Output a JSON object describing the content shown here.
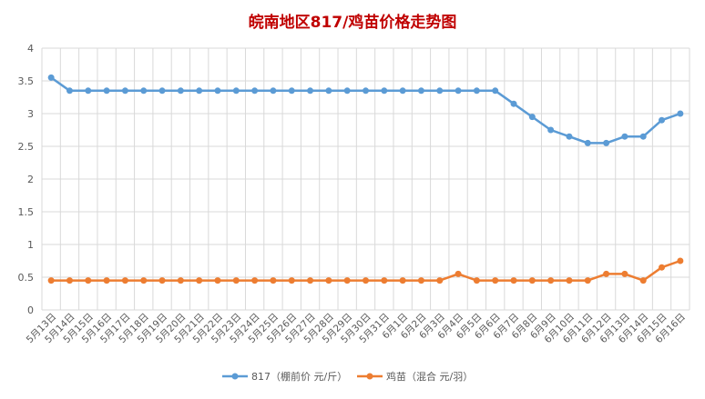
{
  "chart_data": {
    "type": "line",
    "title": "皖南地区817/鸡苗价格走势图",
    "xlabel": "",
    "ylabel": "",
    "ylim": [
      0,
      4
    ],
    "yticks": [
      "0",
      "0.5",
      "1",
      "1.5",
      "2",
      "2.5",
      "3",
      "3.5",
      "4"
    ],
    "grid": true,
    "legend_position": "bottom",
    "categories": [
      "5月13日",
      "5月14日",
      "5月15日",
      "5月16日",
      "5月17日",
      "5月18日",
      "5月19日",
      "5月20日",
      "5月21日",
      "5月22日",
      "5月23日",
      "5月24日",
      "5月25日",
      "5月26日",
      "5月27日",
      "5月28日",
      "5月29日",
      "5月30日",
      "5月31日",
      "6月1日",
      "6月2日",
      "6月3日",
      "6月4日",
      "6月5日",
      "6月6日",
      "6月7日",
      "6月8日",
      "6月9日",
      "6月10日",
      "6月11日",
      "6月12日",
      "6月13日",
      "6月14日",
      "6月15日",
      "6月16日"
    ],
    "series": [
      {
        "name": "817（棚前价 元/斤）",
        "color": "#5b9bd5",
        "values": [
          3.55,
          3.35,
          3.35,
          3.35,
          3.35,
          3.35,
          3.35,
          3.35,
          3.35,
          3.35,
          3.35,
          3.35,
          3.35,
          3.35,
          3.35,
          3.35,
          3.35,
          3.35,
          3.35,
          3.35,
          3.35,
          3.35,
          3.35,
          3.35,
          3.35,
          3.15,
          2.95,
          2.75,
          2.65,
          2.55,
          2.55,
          2.65,
          2.65,
          2.9,
          3.0
        ]
      },
      {
        "name": "鸡苗（混合 元/羽）",
        "color": "#ed7d31",
        "values": [
          0.45,
          0.45,
          0.45,
          0.45,
          0.45,
          0.45,
          0.45,
          0.45,
          0.45,
          0.45,
          0.45,
          0.45,
          0.45,
          0.45,
          0.45,
          0.45,
          0.45,
          0.45,
          0.45,
          0.45,
          0.45,
          0.45,
          0.55,
          0.45,
          0.45,
          0.45,
          0.45,
          0.45,
          0.45,
          0.45,
          0.55,
          0.55,
          0.45,
          0.65,
          0.75
        ]
      }
    ]
  }
}
